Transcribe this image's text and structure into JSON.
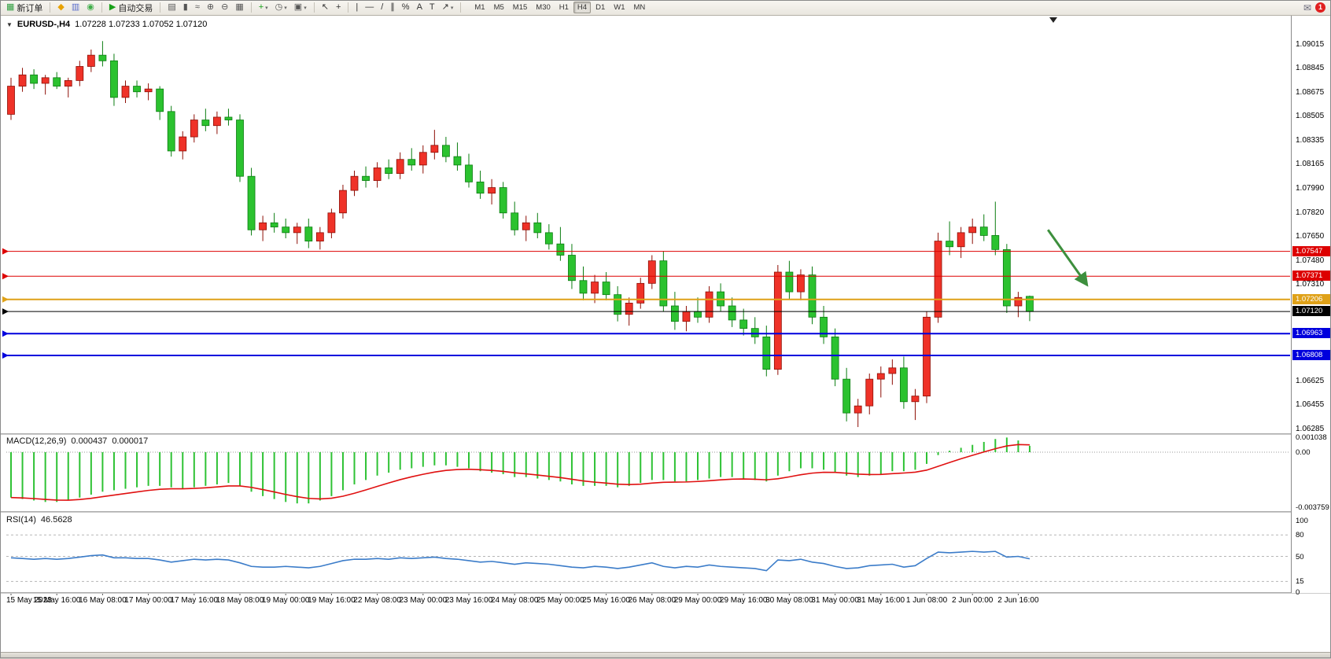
{
  "toolbar": {
    "items": [
      {
        "name": "new-order",
        "glyph": "▦",
        "color": "#2e9e3f",
        "label": "新订单"
      },
      {
        "type": "sep"
      },
      {
        "name": "horn",
        "glyph": "◆",
        "color": "#e8a200"
      },
      {
        "name": "chart-window",
        "glyph": "▥",
        "color": "#5b6ecb"
      },
      {
        "name": "globe",
        "glyph": "◉",
        "color": "#3fae49"
      },
      {
        "type": "sep"
      },
      {
        "name": "autotrading",
        "glyph": "▶",
        "color": "#18a018",
        "label": "自动交易"
      },
      {
        "type": "sep"
      },
      {
        "name": "bar-chart",
        "glyph": "▤",
        "color": "#555555"
      },
      {
        "name": "candlestick-chart",
        "glyph": "▮",
        "color": "#555555"
      },
      {
        "name": "line-chart",
        "glyph": "≈",
        "color": "#555555"
      },
      {
        "name": "zoom-in",
        "glyph": "⊕",
        "color": "#555555"
      },
      {
        "name": "zoom-out",
        "glyph": "⊖",
        "color": "#555555"
      },
      {
        "name": "tile-windows",
        "glyph": "▦",
        "color": "#555555"
      },
      {
        "type": "sep"
      },
      {
        "name": "add-indicator",
        "glyph": "+",
        "color": "#18a018",
        "caret": true
      },
      {
        "name": "periods",
        "glyph": "◷",
        "color": "#555555",
        "caret": true
      },
      {
        "name": "template",
        "glyph": "▣",
        "color": "#555555",
        "caret": true
      },
      {
        "type": "sep"
      },
      {
        "name": "cursor",
        "glyph": "↖",
        "color": "#333333"
      },
      {
        "name": "crosshair",
        "glyph": "+",
        "color": "#333333"
      },
      {
        "type": "sep"
      },
      {
        "name": "vertical-line",
        "glyph": "|",
        "color": "#333333"
      },
      {
        "name": "horizontal-line",
        "glyph": "―",
        "color": "#333333"
      },
      {
        "name": "trendline",
        "glyph": "/",
        "color": "#333333"
      },
      {
        "name": "channel",
        "glyph": "∥",
        "color": "#333333"
      },
      {
        "name": "fibonacci",
        "glyph": "%",
        "color": "#333333"
      },
      {
        "name": "text",
        "glyph": "A",
        "color": "#333333"
      },
      {
        "name": "label",
        "glyph": "T",
        "color": "#333333"
      },
      {
        "name": "arrows",
        "glyph": "↗",
        "color": "#333333",
        "caret": true
      },
      {
        "type": "sep"
      }
    ],
    "timeframes": {
      "options": [
        "M1",
        "M5",
        "M15",
        "M30",
        "H1",
        "H4",
        "D1",
        "W1",
        "MN"
      ],
      "active": "H4"
    },
    "right": {
      "mail_glyph": "✉",
      "badge_count": "1"
    }
  },
  "chart_header": {
    "collapse_icon": "▼",
    "symbol": "EURUSD-,H4",
    "ohlc": "1.07228 1.07233 1.07052 1.07120"
  },
  "chart_data": {
    "type": "candlestick",
    "symbol": "EURUSD-",
    "timeframe": "H4",
    "y_axis_ticks": [
      "1.09015",
      "1.08845",
      "1.08675",
      "1.08505",
      "1.08335",
      "1.08165",
      "1.07990",
      "1.07820",
      "1.07650",
      "1.07480",
      "1.07310",
      "1.06625",
      "1.06455",
      "1.06285"
    ],
    "x_label_step": 4,
    "x_labels": [
      "15 May 2023",
      "15 May 16:00",
      "16 May 08:00",
      "17 May 00:00",
      "17 May 16:00",
      "18 May 08:00",
      "19 May 00:00",
      "19 May 16:00",
      "22 May 08:00",
      "23 May 00:00",
      "23 May 16:00",
      "24 May 08:00",
      "25 May 00:00",
      "25 May 16:00",
      "26 May 08:00",
      "29 May 00:00",
      "29 May 16:00",
      "30 May 08:00",
      "31 May 00:00",
      "31 May 16:00",
      "1 Jun 08:00",
      "2 Jun 00:00",
      "2 Jun 16:00"
    ],
    "candles": [
      [
        1.0852,
        1.0878,
        1.0848,
        1.0872
      ],
      [
        1.0872,
        1.0885,
        1.0868,
        1.088
      ],
      [
        1.088,
        1.0884,
        1.087,
        1.0874
      ],
      [
        1.0874,
        1.088,
        1.0866,
        1.0878
      ],
      [
        1.0878,
        1.0882,
        1.087,
        1.0872
      ],
      [
        1.0872,
        1.0878,
        1.0864,
        1.0876
      ],
      [
        1.0876,
        1.089,
        1.0872,
        1.0886
      ],
      [
        1.0886,
        1.0898,
        1.0882,
        1.0894
      ],
      [
        1.0894,
        1.0904,
        1.0886,
        1.089
      ],
      [
        1.089,
        1.0895,
        1.0858,
        1.0864
      ],
      [
        1.0864,
        1.0876,
        1.086,
        1.0872
      ],
      [
        1.0872,
        1.0876,
        1.0864,
        1.0868
      ],
      [
        1.0868,
        1.0874,
        1.0862,
        1.087
      ],
      [
        1.087,
        1.0872,
        1.0848,
        1.0854
      ],
      [
        1.0854,
        1.0858,
        1.0822,
        1.0826
      ],
      [
        1.0826,
        1.084,
        1.082,
        1.0836
      ],
      [
        1.0836,
        1.0852,
        1.0832,
        1.0848
      ],
      [
        1.0848,
        1.0856,
        1.084,
        1.0844
      ],
      [
        1.0844,
        1.0854,
        1.0838,
        1.085
      ],
      [
        1.085,
        1.0856,
        1.0844,
        1.0848
      ],
      [
        1.0848,
        1.0852,
        1.0804,
        1.0808
      ],
      [
        1.0808,
        1.0814,
        1.0766,
        1.077
      ],
      [
        1.077,
        1.078,
        1.0762,
        1.0775
      ],
      [
        1.0775,
        1.0782,
        1.0768,
        1.0772
      ],
      [
        1.0772,
        1.0778,
        1.0764,
        1.0768
      ],
      [
        1.0768,
        1.0775,
        1.076,
        1.0772
      ],
      [
        1.0772,
        1.0778,
        1.0757,
        1.0762
      ],
      [
        1.0762,
        1.0772,
        1.0756,
        1.0768
      ],
      [
        1.0768,
        1.0785,
        1.0764,
        1.0782
      ],
      [
        1.0782,
        1.0802,
        1.0778,
        1.0798
      ],
      [
        1.0798,
        1.0812,
        1.0794,
        1.0808
      ],
      [
        1.0808,
        1.0815,
        1.08,
        1.0805
      ],
      [
        1.0805,
        1.0818,
        1.08,
        1.0814
      ],
      [
        1.0814,
        1.082,
        1.0806,
        1.081
      ],
      [
        1.081,
        1.0825,
        1.0806,
        1.082
      ],
      [
        1.082,
        1.0828,
        1.0812,
        1.0816
      ],
      [
        1.0816,
        1.083,
        1.081,
        1.0825
      ],
      [
        1.0825,
        1.0841,
        1.082,
        1.083
      ],
      [
        1.083,
        1.0836,
        1.0818,
        1.0822
      ],
      [
        1.0822,
        1.0832,
        1.0812,
        1.0816
      ],
      [
        1.0816,
        1.0824,
        1.08,
        1.0804
      ],
      [
        1.0804,
        1.0812,
        1.0792,
        1.0796
      ],
      [
        1.0796,
        1.0806,
        1.0788,
        1.08
      ],
      [
        1.08,
        1.0804,
        1.0778,
        1.0782
      ],
      [
        1.0782,
        1.079,
        1.0766,
        1.077
      ],
      [
        1.077,
        1.078,
        1.0762,
        1.0775
      ],
      [
        1.0775,
        1.0782,
        1.0764,
        1.0768
      ],
      [
        1.0768,
        1.0774,
        1.0756,
        1.076
      ],
      [
        1.076,
        1.0772,
        1.0748,
        1.0752
      ],
      [
        1.0752,
        1.076,
        1.0728,
        1.0734
      ],
      [
        1.0734,
        1.0744,
        1.072,
        1.0725
      ],
      [
        1.0725,
        1.0738,
        1.0718,
        1.0733
      ],
      [
        1.0733,
        1.074,
        1.072,
        1.0724
      ],
      [
        1.0724,
        1.073,
        1.0705,
        1.071
      ],
      [
        1.071,
        1.0722,
        1.0702,
        1.0718
      ],
      [
        1.0718,
        1.0736,
        1.0714,
        1.0732
      ],
      [
        1.0732,
        1.0752,
        1.0728,
        1.0748
      ],
      [
        1.0748,
        1.0755,
        1.0712,
        1.0716
      ],
      [
        1.0716,
        1.0726,
        1.0699,
        1.0705
      ],
      [
        1.0705,
        1.0716,
        1.0698,
        1.0712
      ],
      [
        1.0712,
        1.0722,
        1.0704,
        1.0708
      ],
      [
        1.0708,
        1.073,
        1.0704,
        1.0726
      ],
      [
        1.0726,
        1.0732,
        1.0712,
        1.0716
      ],
      [
        1.0716,
        1.0722,
        1.0701,
        1.0706
      ],
      [
        1.0706,
        1.0714,
        1.0695,
        1.07
      ],
      [
        1.07,
        1.0708,
        1.0689,
        1.0694
      ],
      [
        1.0694,
        1.0702,
        1.0666,
        1.0671
      ],
      [
        1.0671,
        1.0745,
        1.0667,
        1.074
      ],
      [
        1.074,
        1.0748,
        1.0721,
        1.0726
      ],
      [
        1.0726,
        1.0742,
        1.072,
        1.0738
      ],
      [
        1.0738,
        1.0744,
        1.0703,
        1.0708
      ],
      [
        1.0708,
        1.0716,
        1.0689,
        1.0694
      ],
      [
        1.0694,
        1.07,
        1.0659,
        1.0664
      ],
      [
        1.0664,
        1.0672,
        1.0634,
        1.064
      ],
      [
        1.064,
        1.065,
        1.063,
        1.0645
      ],
      [
        1.0645,
        1.0668,
        1.0639,
        1.0664
      ],
      [
        1.0664,
        1.0673,
        1.0651,
        1.0668
      ],
      [
        1.0668,
        1.0678,
        1.066,
        1.0672
      ],
      [
        1.0672,
        1.068,
        1.0643,
        1.0648
      ],
      [
        1.0648,
        1.0657,
        1.0635,
        1.0652
      ],
      [
        1.0652,
        1.0712,
        1.0647,
        1.0708
      ],
      [
        1.0708,
        1.0768,
        1.0704,
        1.0762
      ],
      [
        1.0762,
        1.0776,
        1.0752,
        1.0758
      ],
      [
        1.0758,
        1.0772,
        1.075,
        1.0768
      ],
      [
        1.0768,
        1.0778,
        1.076,
        1.0772
      ],
      [
        1.0772,
        1.0781,
        1.0762,
        1.0766
      ],
      [
        1.0766,
        1.079,
        1.0752,
        1.0756
      ],
      [
        1.0756,
        1.076,
        1.0711,
        1.0716
      ],
      [
        1.0716,
        1.0726,
        1.0708,
        1.0722
      ],
      [
        1.07228,
        1.07233,
        1.07052,
        1.0712
      ]
    ],
    "levels": [
      {
        "name": "resistance-1",
        "price": 1.07547,
        "label": "1.07547",
        "color": "#dd0000",
        "width": 1
      },
      {
        "name": "resistance-2",
        "price": 1.07371,
        "label": "1.07371",
        "color": "#dd0000",
        "width": 1
      },
      {
        "name": "pivot",
        "price": 1.07206,
        "label": "1.07206",
        "color": "#dfa118",
        "width": 2
      },
      {
        "name": "bid-price",
        "price": 1.0712,
        "label": "1.07120",
        "color": "#000000",
        "width": 1
      },
      {
        "name": "support-1",
        "price": 1.06963,
        "label": "1.06963",
        "color": "#0000dd",
        "width": 2
      },
      {
        "name": "support-2",
        "price": 1.06808,
        "label": "1.06808",
        "color": "#0000dd",
        "width": 2
      }
    ],
    "annotations": [
      {
        "type": "arrow",
        "color": "#3d8f3d",
        "from": {
          "index": 90.6,
          "price": 1.077
        },
        "to": {
          "index": 94.0,
          "price": 1.0731
        }
      }
    ],
    "indicators": {
      "macd": {
        "label": "MACD(12,26,9)",
        "value": "0.000437",
        "signal_value": "0.000017",
        "scale_labels": [
          "0.001038",
          "0.00",
          "-0.003759"
        ],
        "scale_values": [
          0.001038,
          0,
          -0.003759
        ],
        "colors": {
          "histogram": "#2ec234",
          "signal": "#e01010"
        },
        "histogram": [
          -0.0031,
          -0.0032,
          -0.0033,
          -0.0034,
          -0.0034,
          -0.0033,
          -0.0031,
          -0.0029,
          -0.0027,
          -0.0026,
          -0.0025,
          -0.0024,
          -0.0023,
          -0.0023,
          -0.0024,
          -0.0025,
          -0.0024,
          -0.0023,
          -0.0022,
          -0.0021,
          -0.0023,
          -0.0027,
          -0.003,
          -0.0032,
          -0.0034,
          -0.0035,
          -0.0035,
          -0.0033,
          -0.003,
          -0.0026,
          -0.0022,
          -0.0019,
          -0.0016,
          -0.0014,
          -0.0012,
          -0.0011,
          -0.001,
          -0.0009,
          -0.0009,
          -0.001,
          -0.0011,
          -0.0013,
          -0.0014,
          -0.0015,
          -0.0017,
          -0.0017,
          -0.0018,
          -0.0019,
          -0.002,
          -0.0022,
          -0.0023,
          -0.0023,
          -0.0023,
          -0.0024,
          -0.0023,
          -0.0021,
          -0.0019,
          -0.0019,
          -0.002,
          -0.002,
          -0.0019,
          -0.0018,
          -0.0017,
          -0.0017,
          -0.0018,
          -0.0019,
          -0.002,
          -0.0016,
          -0.0013,
          -0.0011,
          -0.0011,
          -0.0012,
          -0.0014,
          -0.0016,
          -0.0017,
          -0.0016,
          -0.0015,
          -0.0013,
          -0.0013,
          -0.0012,
          -0.0008,
          -0.0002,
          0.0001,
          0.0003,
          0.0005,
          0.0007,
          0.0009,
          0.001,
          0.0008,
          0.000437
        ]
      },
      "rsi": {
        "label": "RSI(14)",
        "value": "46.5628",
        "color": "#3b7cc9",
        "scale_labels": [
          "100",
          "80",
          "50",
          "15",
          "0"
        ],
        "scale_values": [
          100,
          80,
          50,
          15,
          0
        ],
        "levels": [
          80,
          50,
          15
        ],
        "values": [
          48,
          47,
          46,
          47,
          46,
          47,
          49,
          51,
          52,
          48,
          48,
          47,
          47,
          45,
          42,
          44,
          46,
          45,
          46,
          45,
          41,
          36,
          35,
          35,
          36,
          35,
          34,
          36,
          40,
          44,
          46,
          46,
          47,
          46,
          48,
          47,
          48,
          49,
          47,
          46,
          44,
          42,
          43,
          41,
          39,
          41,
          40,
          39,
          37,
          35,
          34,
          36,
          35,
          33,
          35,
          38,
          41,
          36,
          34,
          36,
          35,
          38,
          36,
          35,
          34,
          33,
          30,
          45,
          44,
          46,
          42,
          40,
          36,
          33,
          34,
          37,
          38,
          39,
          35,
          37,
          47,
          56,
          55,
          56,
          57,
          56,
          57,
          49,
          50,
          46.5628
        ]
      }
    },
    "colors": {
      "up": "#ef3228",
      "up_border": "#8e0f06",
      "down": "#2bc22f",
      "down_border": "#0b7d11",
      "background": "#ffffff"
    }
  }
}
